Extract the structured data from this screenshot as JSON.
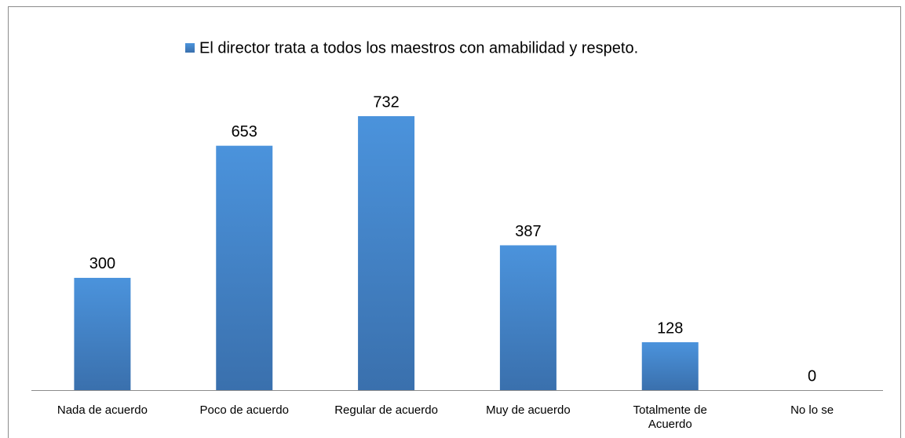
{
  "chart_data": {
    "type": "bar",
    "categories": [
      "Nada de acuerdo",
      "Poco de acuerdo",
      "Regular de acuerdo",
      "Muy de acuerdo",
      "Totalmente de Acuerdo",
      "No lo se"
    ],
    "series": [
      {
        "name": "El director trata a todos los maestros con amabilidad y respeto.",
        "color": "#4a8fd6",
        "values": [
          300,
          653,
          732,
          387,
          128,
          0
        ]
      }
    ],
    "legend": "top"
  }
}
